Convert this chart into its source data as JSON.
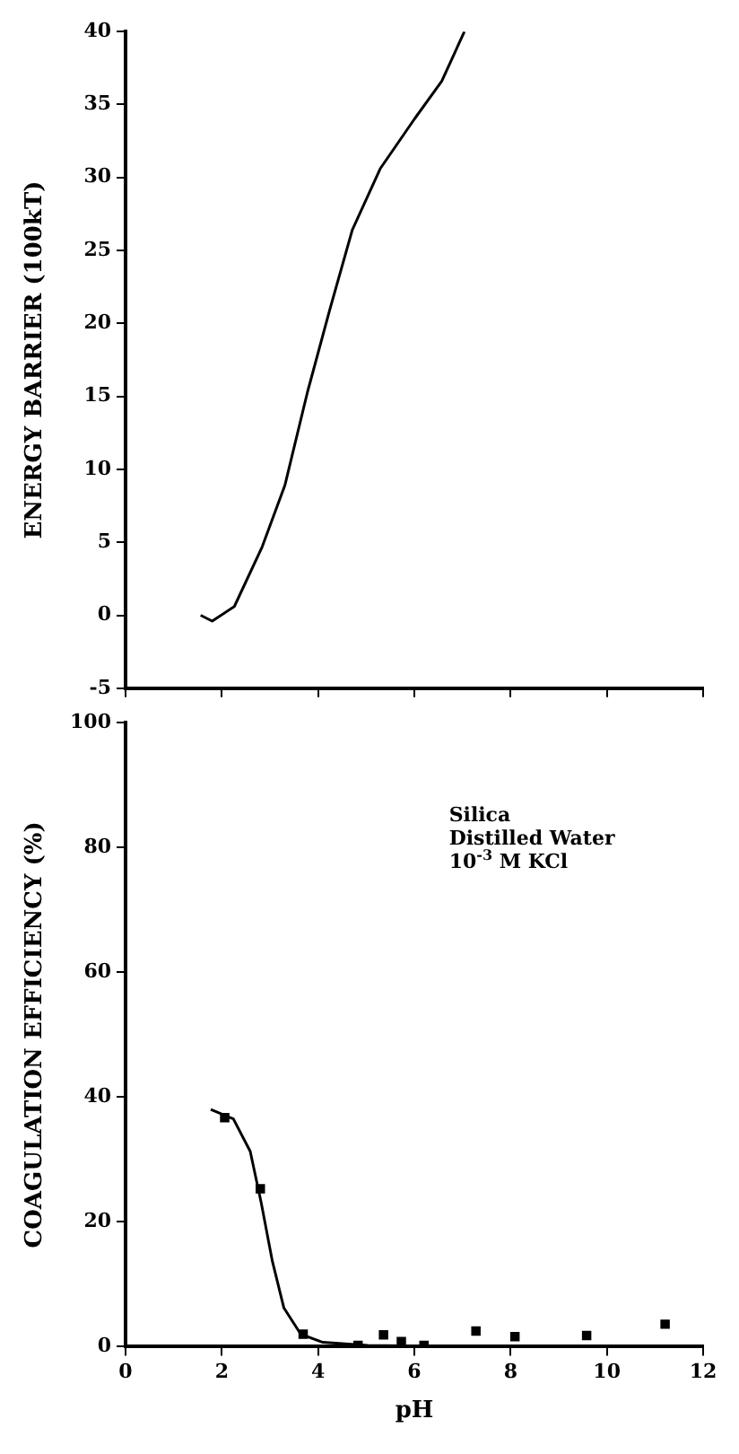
{
  "chart_data": [
    {
      "type": "line",
      "ylabel": "ENERGY BARRIER (100kT)",
      "xlim": [
        0,
        12
      ],
      "xticks": [
        0,
        2,
        4,
        6,
        8,
        10,
        12
      ],
      "ylim": [
        -5,
        40
      ],
      "yticks": [
        -5,
        0,
        5,
        10,
        15,
        20,
        25,
        30,
        35,
        40
      ],
      "tick_labels": "y",
      "grid": false,
      "legend": false,
      "marker": "none",
      "line_style": "solid",
      "series": [
        {
          "color": "#000000",
          "x": [
            1.56,
            1.8,
            2.26,
            2.84,
            3.31,
            3.78,
            4.24,
            4.71,
            5.29,
            6.0,
            6.57,
            7.04
          ],
          "values": [
            0,
            -0.4,
            0.6,
            4.7,
            8.9,
            15.3,
            20.9,
            26.4,
            30.6,
            34.0,
            36.6,
            40
          ]
        }
      ]
    },
    {
      "type": "scatter",
      "xlabel": "pH",
      "ylabel": "COAGULATION EFFICIENCY (%)",
      "xlim": [
        0,
        12
      ],
      "xticks": [
        0,
        2,
        4,
        6,
        8,
        10,
        12
      ],
      "ylim": [
        0,
        100
      ],
      "yticks": [
        0,
        20,
        40,
        60,
        80,
        100
      ],
      "grid": false,
      "legend": false,
      "annotations": [
        "Silica",
        "Distilled Water",
        "10$^{-3}$ M KCl"
      ],
      "series": [
        {
          "marker": "square",
          "color": "#000000",
          "x": [
            2.06,
            2.8,
            3.69,
            4.83,
            5.36,
            5.73,
            6.2,
            7.28,
            8.09,
            9.58,
            11.21
          ],
          "values": [
            36.7,
            25.3,
            2.0,
            0.2,
            1.9,
            0.8,
            0.2,
            2.5,
            1.6,
            1.8,
            3.6
          ]
        },
        {
          "type": "line",
          "marker": "none",
          "color": "#000000",
          "x": [
            1.77,
            2.24,
            2.59,
            2.82,
            3.05,
            3.29,
            3.64,
            4.1,
            5.03,
            6.2
          ],
          "values": [
            38,
            36.5,
            31.3,
            23,
            13.7,
            6.2,
            2,
            0.7,
            0.2,
            0.1
          ]
        }
      ]
    }
  ]
}
